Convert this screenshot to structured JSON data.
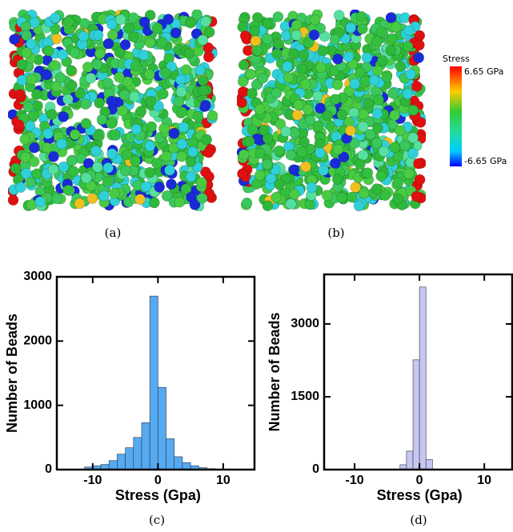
{
  "images": [
    {
      "caption": "(a)"
    },
    {
      "caption": "(b)"
    }
  ],
  "colorbar": {
    "title": "Stress",
    "max_label": "6.65 GPa",
    "min_label": "-6.65 GPa"
  },
  "chart_data": [
    {
      "type": "histogram",
      "caption": "(c)",
      "xlabel": "Stress (Gpa)",
      "ylabel": "Number of Beads",
      "color": "#55aaf2",
      "bins": [
        -11.25,
        -10,
        -8.75,
        -7.5,
        -6.25,
        -5,
        -3.75,
        -2.5,
        -1.25,
        0,
        1.25,
        2.5,
        3.75,
        5,
        6.25,
        7.5,
        8.75
      ],
      "values": [
        40,
        60,
        80,
        140,
        240,
        340,
        500,
        730,
        2700,
        1280,
        480,
        200,
        110,
        60,
        30,
        15
      ],
      "xlim": [
        -15.5,
        14.8
      ],
      "ylim": [
        0,
        3000
      ],
      "xticks": [
        -10,
        0,
        10
      ],
      "yticks": [
        0,
        1000,
        2000,
        3000
      ]
    },
    {
      "type": "histogram",
      "caption": "(d)",
      "xlabel": "Stress (Gpa)",
      "ylabel": "Number of Beads",
      "color": "#c6c6f0",
      "bins": [
        -3,
        -2,
        -1,
        0,
        1,
        2
      ],
      "values": [
        100,
        380,
        2260,
        3760,
        210
      ],
      "xlim": [
        -14.7,
        14.3
      ],
      "ylim": [
        0,
        4020
      ],
      "xticks": [
        -10,
        0,
        10
      ],
      "yticks": [
        0,
        1500,
        3000
      ]
    }
  ]
}
